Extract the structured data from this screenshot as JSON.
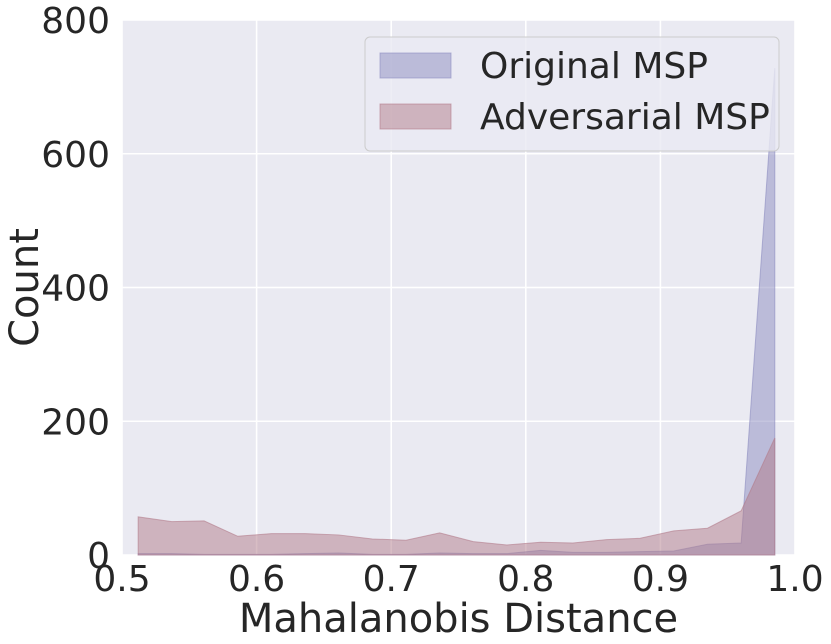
{
  "chart_data": {
    "type": "area",
    "title": "",
    "xlabel": "Mahalanobis Distance",
    "ylabel": "Count",
    "xlim": [
      0.5,
      1.0
    ],
    "ylim": [
      0,
      800
    ],
    "xticks": [
      "0.5",
      "0.6",
      "0.7",
      "0.8",
      "0.9",
      "1.0"
    ],
    "yticks": [
      "0",
      "200",
      "400",
      "600",
      "800"
    ],
    "grid": true,
    "legend_position": "top-right",
    "background_color": "#eaeaf2",
    "series": [
      {
        "name": "Original MSP",
        "color": "#8c8cc0",
        "x": [
          0.512,
          0.537,
          0.561,
          0.586,
          0.611,
          0.636,
          0.661,
          0.686,
          0.711,
          0.736,
          0.761,
          0.786,
          0.811,
          0.835,
          0.86,
          0.885,
          0.91,
          0.935,
          0.96,
          0.985
        ],
        "values": [
          2,
          2,
          1,
          1,
          1,
          2,
          3,
          1,
          1,
          3,
          2,
          2,
          7,
          4,
          4,
          5,
          6,
          16,
          18,
          728
        ]
      },
      {
        "name": "Adversarial MSP",
        "color": "#b27b8a",
        "x": [
          0.512,
          0.537,
          0.561,
          0.586,
          0.611,
          0.636,
          0.661,
          0.686,
          0.711,
          0.736,
          0.761,
          0.786,
          0.811,
          0.835,
          0.86,
          0.885,
          0.91,
          0.935,
          0.96,
          0.985
        ],
        "values": [
          57,
          50,
          51,
          28,
          32,
          32,
          30,
          24,
          22,
          33,
          20,
          15,
          19,
          18,
          23,
          25,
          36,
          40,
          66,
          175
        ]
      }
    ]
  }
}
